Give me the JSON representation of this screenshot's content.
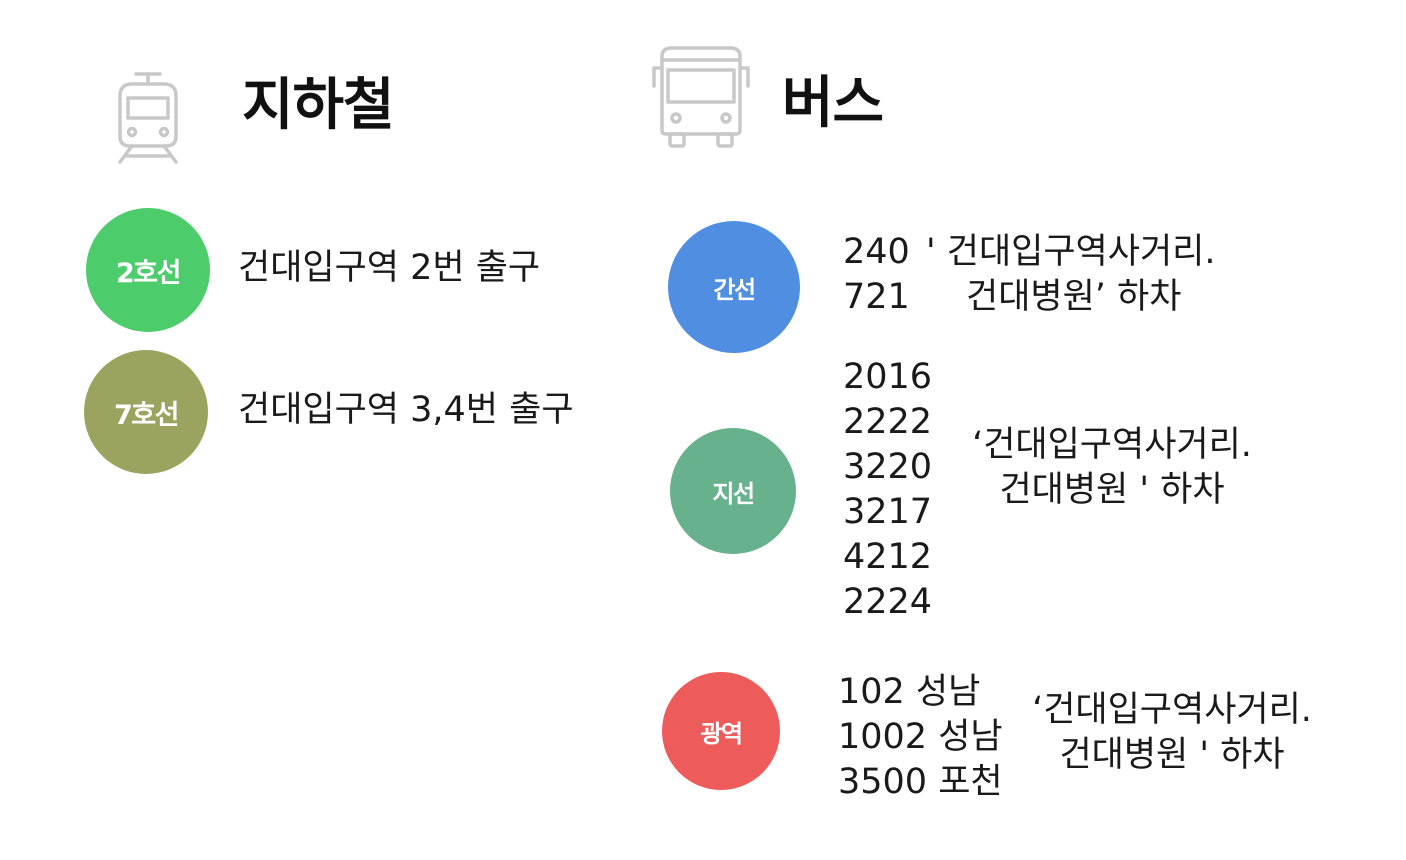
{
  "subway": {
    "title": "지하철",
    "icon": "train-icon",
    "lines": [
      {
        "label": "2호선",
        "color": "#4ccc6a",
        "exit": "건대입구역 2번 출구"
      },
      {
        "label": "7호선",
        "color": "#9ba35f",
        "exit": "건대입구역 3,4번 출구"
      }
    ]
  },
  "bus": {
    "title": "버스",
    "icon": "bus-icon",
    "groups": [
      {
        "label": "간선",
        "color": "#4f8ee0",
        "numbers": [
          "240",
          "721"
        ],
        "stop_line1": "' 건대입구역사거리.",
        "stop_line2": "건대병원’ 하차"
      },
      {
        "label": "지선",
        "color": "#68b18d",
        "numbers": [
          "2016",
          "2222",
          "3220",
          "3217",
          "4212",
          "2224"
        ],
        "stop_line1": "‘건대입구역사거리.",
        "stop_line2": "건대병원 '   하차"
      },
      {
        "label": "광역",
        "color": "#ee5b5b",
        "numbers": [
          "102 성남",
          "1002 성남",
          "3500 포천"
        ],
        "stop_line1": "‘건대입구역사거리.",
        "stop_line2": "건대병원 ' 하차"
      }
    ]
  }
}
